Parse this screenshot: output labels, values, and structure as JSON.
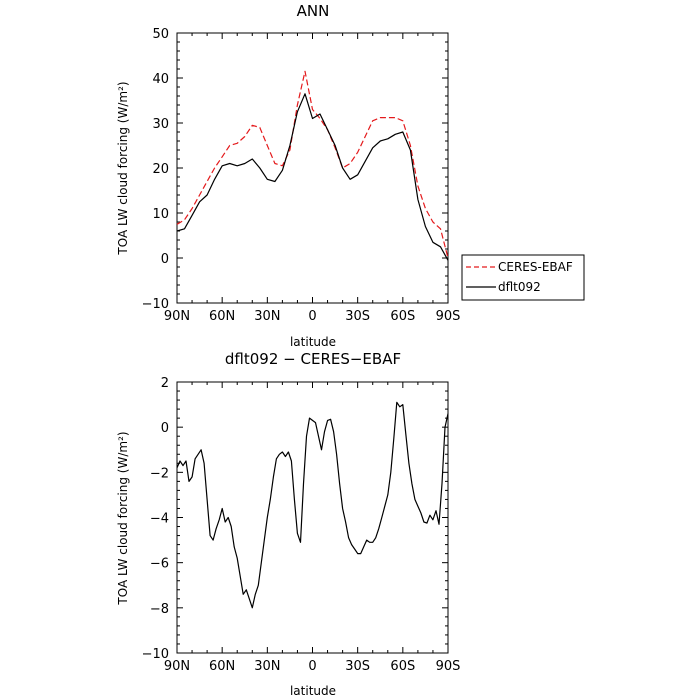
{
  "chart_data": [
    {
      "type": "line",
      "title": "ANN",
      "xlabel": "latitude",
      "ylabel": "TOA LW cloud forcing (W/m²)",
      "xlim": [
        90,
        -90
      ],
      "ylim": [
        -10,
        50
      ],
      "xticks": [
        90,
        60,
        30,
        0,
        -30,
        -60,
        -90
      ],
      "xtick_labels": [
        "90N",
        "60N",
        "30N",
        "0",
        "30S",
        "60S",
        "90S"
      ],
      "yticks": [
        -10,
        0,
        10,
        20,
        30,
        40,
        50
      ],
      "ytick_labels": [
        "−10",
        "0",
        "10",
        "20",
        "30",
        "40",
        "50"
      ],
      "legend": "right",
      "series": [
        {
          "name": "CERES-EBAF",
          "color": "#e41a1c",
          "dash": "dashed",
          "x": [
            90,
            85,
            80,
            75,
            70,
            65,
            60,
            55,
            50,
            45,
            40,
            35,
            30,
            25,
            20,
            15,
            10,
            5,
            0,
            -5,
            -10,
            -15,
            -20,
            -25,
            -30,
            -35,
            -40,
            -45,
            -50,
            -55,
            -60,
            -65,
            -70,
            -75,
            -80,
            -85,
            -90
          ],
          "y": [
            7.5,
            8.5,
            11,
            14,
            17,
            20,
            22.5,
            25,
            25.5,
            27,
            29.5,
            29,
            25,
            21,
            20.5,
            24,
            34,
            41.5,
            33,
            31,
            28.5,
            24.5,
            20,
            21,
            23.5,
            27,
            30.5,
            31.2,
            31.2,
            31.2,
            30.5,
            25,
            16,
            11,
            8,
            6.5,
            0
          ]
        },
        {
          "name": "dflt092",
          "color": "#000000",
          "dash": "solid",
          "x": [
            90,
            85,
            80,
            75,
            70,
            65,
            60,
            55,
            50,
            45,
            40,
            35,
            30,
            25,
            20,
            15,
            10,
            5,
            0,
            -5,
            -10,
            -15,
            -20,
            -25,
            -30,
            -35,
            -40,
            -45,
            -50,
            -55,
            -60,
            -65,
            -70,
            -75,
            -80,
            -85,
            -90
          ],
          "y": [
            6,
            6.5,
            9.5,
            12.5,
            14,
            17.5,
            20.5,
            21,
            20.5,
            21,
            22,
            20,
            17.5,
            17,
            19.5,
            25,
            32.5,
            36.5,
            31,
            32,
            28.5,
            25,
            20,
            17.5,
            18.5,
            21.5,
            24.5,
            26,
            26.5,
            27.5,
            28,
            24,
            13,
            7,
            3.5,
            2.5,
            -0.5
          ]
        }
      ]
    },
    {
      "type": "line",
      "title": "dflt092 − CERES−EBAF",
      "xlabel": "latitude",
      "ylabel": "TOA LW cloud forcing (W/m²)",
      "xlim": [
        90,
        -90
      ],
      "ylim": [
        -10,
        2
      ],
      "xticks": [
        90,
        60,
        30,
        0,
        -30,
        -60,
        -90
      ],
      "xtick_labels": [
        "90N",
        "60N",
        "30N",
        "0",
        "30S",
        "60S",
        "90S"
      ],
      "yticks": [
        -10,
        -8,
        -6,
        -4,
        -2,
        0,
        2
      ],
      "ytick_labels": [
        "−10",
        "−8",
        "−6",
        "−4",
        "−2",
        "0",
        "2"
      ],
      "series": [
        {
          "color": "#000000",
          "dash": "solid",
          "x": [
            90,
            88,
            86,
            84,
            82,
            80,
            78,
            76,
            74,
            72,
            70,
            68,
            66,
            64,
            62,
            60,
            58,
            56,
            54,
            52,
            50,
            48,
            46,
            44,
            42,
            40,
            38,
            36,
            34,
            32,
            30,
            28,
            26,
            24,
            22,
            20,
            18,
            16,
            14,
            12,
            10,
            8,
            6,
            4,
            2,
            0,
            -2,
            -4,
            -6,
            -8,
            -10,
            -12,
            -14,
            -16,
            -18,
            -20,
            -22,
            -24,
            -26,
            -28,
            -30,
            -32,
            -34,
            -36,
            -38,
            -40,
            -42,
            -44,
            -46,
            -48,
            -50,
            -52,
            -54,
            -56,
            -58,
            -60,
            -62,
            -64,
            -66,
            -68,
            -70,
            -72,
            -74,
            -76,
            -78,
            -80,
            -82,
            -84,
            -86,
            -88,
            -90
          ],
          "y": [
            -1.8,
            -1.5,
            -1.7,
            -1.5,
            -2.4,
            -2.2,
            -1.4,
            -1.2,
            -1.0,
            -1.6,
            -3.2,
            -4.8,
            -5.0,
            -4.5,
            -4.1,
            -3.6,
            -4.2,
            -4.0,
            -4.4,
            -5.3,
            -5.8,
            -6.6,
            -7.4,
            -7.2,
            -7.6,
            -8.0,
            -7.4,
            -7.0,
            -6.0,
            -5.0,
            -4.0,
            -3.2,
            -2.2,
            -1.4,
            -1.2,
            -1.1,
            -1.3,
            -1.1,
            -1.5,
            -3.2,
            -4.7,
            -5.1,
            -2.5,
            -0.4,
            0.4,
            0.3,
            0.2,
            -0.4,
            -1.0,
            -0.2,
            0.3,
            0.35,
            -0.2,
            -1.2,
            -2.5,
            -3.6,
            -4.2,
            -4.9,
            -5.2,
            -5.4,
            -5.6,
            -5.6,
            -5.3,
            -5.0,
            -5.1,
            -5.1,
            -4.9,
            -4.5,
            -4.0,
            -3.5,
            -3.0,
            -2.0,
            -0.5,
            1.1,
            0.9,
            1.0,
            -0.3,
            -1.6,
            -2.5,
            -3.2,
            -3.5,
            -3.8,
            -4.2,
            -4.25,
            -3.9,
            -4.1,
            -3.7,
            -4.3,
            -2.5,
            0.0,
            0.6
          ]
        }
      ]
    }
  ]
}
